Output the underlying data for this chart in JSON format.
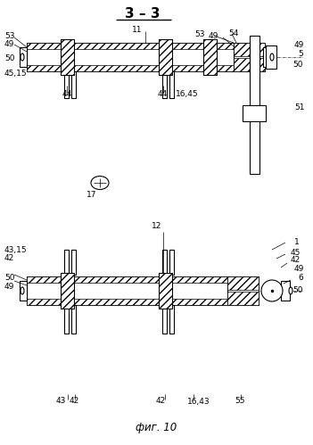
{
  "bg_color": "#ffffff",
  "line_color": "#000000",
  "title": "3 – 3",
  "fig_label": "фиг. 10"
}
